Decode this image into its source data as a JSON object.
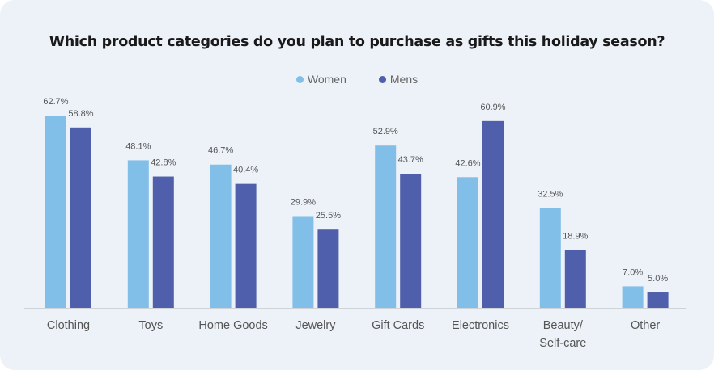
{
  "chart_data": {
    "type": "bar",
    "title": "Which product categories do you plan to purchase as gifts this holiday season?",
    "categories": [
      "Clothing",
      "Toys",
      "Home Goods",
      "Jewelry",
      "Gift Cards",
      "Electronics",
      "Beauty/\nSelf-care",
      "Other"
    ],
    "series": [
      {
        "name": "Women",
        "color": "#82bfe8",
        "values": [
          62.7,
          48.1,
          46.7,
          29.9,
          52.9,
          42.6,
          32.5,
          7.0
        ],
        "labels": [
          "62.7%",
          "48.1%",
          "46.7%",
          "29.9%",
          "52.9%",
          "42.6%",
          "32.5%",
          "7.0%"
        ]
      },
      {
        "name": "Mens",
        "color": "#4f5fab",
        "values": [
          58.8,
          42.8,
          40.4,
          25.5,
          43.7,
          60.9,
          18.9,
          5.0
        ],
        "labels": [
          "58.8%",
          "42.8%",
          "40.4%",
          "25.5%",
          "43.7%",
          "60.9%",
          "18.9%",
          "5.0%"
        ]
      }
    ],
    "xlabel": "",
    "ylabel": "",
    "ylim": [
      0,
      70
    ],
    "grid": false,
    "legend_position": "top-center"
  }
}
